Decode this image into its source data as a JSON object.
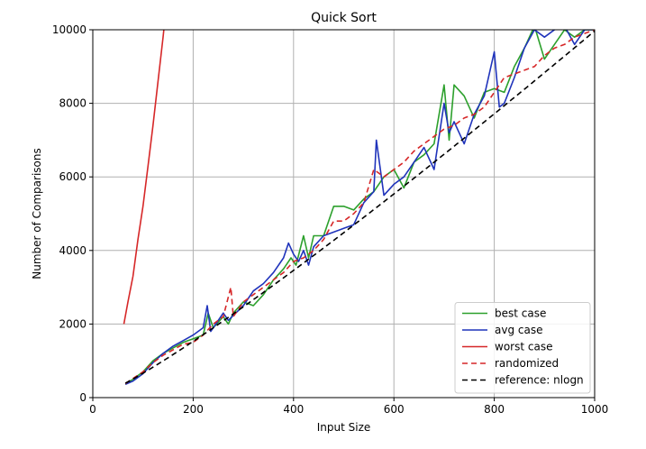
{
  "chart_data": {
    "type": "line",
    "title": "Quick Sort",
    "xlabel": "Input Size",
    "ylabel": "Number of Comparisons",
    "xlim": [
      0,
      1000
    ],
    "ylim": [
      0,
      10000
    ],
    "xticks": [
      0,
      200,
      400,
      600,
      800,
      1000
    ],
    "yticks": [
      0,
      2000,
      4000,
      6000,
      8000,
      10000
    ],
    "grid": true,
    "legend_position": "bottom-right",
    "series": [
      {
        "name": "best case",
        "color": "#2ca02c",
        "style": "solid",
        "x": [
          65,
          80,
          100,
          120,
          140,
          160,
          180,
          200,
          220,
          230,
          240,
          260,
          270,
          280,
          300,
          320,
          340,
          360,
          380,
          395,
          405,
          420,
          430,
          440,
          460,
          480,
          500,
          520,
          540,
          560,
          580,
          600,
          620,
          640,
          660,
          680,
          700,
          710,
          720,
          740,
          760,
          780,
          800,
          820,
          840,
          860,
          880,
          900,
          920,
          940,
          960,
          980,
          1000
        ],
        "y": [
          360,
          500,
          700,
          1000,
          1200,
          1350,
          1500,
          1600,
          1700,
          2300,
          1900,
          2200,
          2000,
          2300,
          2600,
          2500,
          2800,
          3200,
          3500,
          3800,
          3600,
          4400,
          3800,
          4400,
          4400,
          5200,
          5200,
          5100,
          5400,
          5600,
          6000,
          6200,
          5700,
          6400,
          6600,
          6900,
          8500,
          7000,
          8500,
          8200,
          7600,
          8300,
          8400,
          8300,
          9000,
          9500,
          10100,
          9200,
          9600,
          10000,
          9800,
          10000,
          10000
        ]
      },
      {
        "name": "avg case",
        "color": "#1f33bb",
        "style": "solid",
        "x": [
          65,
          80,
          100,
          120,
          140,
          160,
          180,
          200,
          220,
          228,
          235,
          245,
          260,
          270,
          285,
          300,
          320,
          340,
          360,
          380,
          390,
          400,
          410,
          420,
          430,
          440,
          460,
          480,
          500,
          520,
          540,
          560,
          565,
          580,
          600,
          620,
          640,
          660,
          680,
          700,
          710,
          720,
          740,
          760,
          780,
          800,
          810,
          820,
          840,
          860,
          880,
          900,
          920,
          940,
          960,
          980,
          1000
        ],
        "y": [
          360,
          450,
          650,
          950,
          1200,
          1400,
          1550,
          1700,
          1900,
          2500,
          1800,
          2000,
          2300,
          2100,
          2300,
          2500,
          2900,
          3100,
          3400,
          3800,
          4200,
          3900,
          3700,
          4000,
          3600,
          4100,
          4400,
          4500,
          4600,
          4700,
          5300,
          5600,
          7000,
          5500,
          5800,
          6000,
          6400,
          6800,
          6200,
          8000,
          7200,
          7500,
          6900,
          7700,
          8200,
          9400,
          7900,
          8000,
          8700,
          9500,
          10000,
          9800,
          10000,
          10100,
          9600,
          10000,
          10000
        ]
      },
      {
        "name": "worst case",
        "color": "#d62728",
        "style": "solid",
        "x": [
          62,
          70,
          80,
          90,
          100,
          110,
          120,
          130,
          140,
          143
        ],
        "y": [
          2000,
          2600,
          3300,
          4300,
          5200,
          6300,
          7400,
          8600,
          9800,
          10200
        ]
      },
      {
        "name": "randomized",
        "color": "#d62728",
        "style": "dashed",
        "x": [
          65,
          80,
          100,
          120,
          140,
          160,
          180,
          200,
          220,
          240,
          260,
          275,
          280,
          300,
          320,
          340,
          360,
          380,
          400,
          420,
          440,
          460,
          480,
          500,
          520,
          540,
          560,
          580,
          600,
          620,
          640,
          660,
          680,
          700,
          720,
          740,
          760,
          780,
          800,
          820,
          840,
          860,
          880,
          900,
          920,
          940,
          960,
          980,
          1000
        ],
        "y": [
          380,
          520,
          700,
          950,
          1150,
          1300,
          1450,
          1500,
          1700,
          2000,
          2200,
          3000,
          2200,
          2600,
          2800,
          3000,
          3200,
          3400,
          3700,
          3800,
          4000,
          4300,
          4800,
          4800,
          5000,
          5300,
          6200,
          6000,
          6200,
          6400,
          6700,
          6900,
          7100,
          7300,
          7400,
          7600,
          7700,
          7900,
          8300,
          8700,
          8800,
          8900,
          9000,
          9300,
          9500,
          9600,
          9800,
          9900,
          10000
        ]
      },
      {
        "name": "reference: nlogn",
        "color": "#000000",
        "style": "dashed",
        "formula": "n*log2(n)",
        "x": [
          65,
          1000
        ]
      }
    ]
  }
}
